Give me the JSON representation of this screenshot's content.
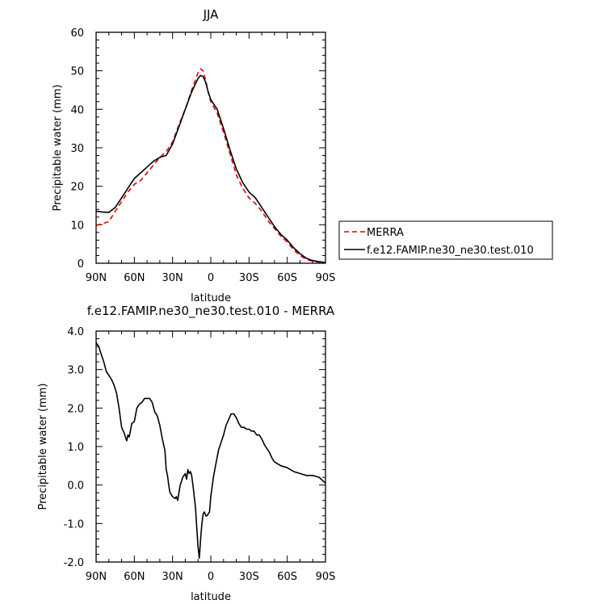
{
  "chart_data": [
    {
      "type": "line",
      "title": "JJA",
      "xlabel": "latitude",
      "ylabel": "Precipitable water (mm)",
      "xlim": [
        90,
        -90
      ],
      "ylim": [
        0,
        60
      ],
      "xticks": [
        90,
        60,
        30,
        0,
        -30,
        -60,
        -90
      ],
      "xtick_labels": [
        "90N",
        "60N",
        "30N",
        "0",
        "30S",
        "60S",
        "90S"
      ],
      "yticks": [
        0,
        10,
        20,
        30,
        40,
        50,
        60
      ],
      "ytick_labels": [
        "0",
        "10",
        "20",
        "30",
        "40",
        "50",
        "60"
      ],
      "grid": false,
      "legend_position": "right",
      "series": [
        {
          "name": "MERRA",
          "color": "#e00000",
          "dash": "dashed",
          "x": [
            90,
            85,
            80,
            75,
            70,
            65,
            60,
            55,
            50,
            45,
            40,
            35,
            30,
            25,
            20,
            15,
            10,
            8,
            6,
            4,
            2,
            0,
            -5,
            -10,
            -15,
            -20,
            -25,
            -30,
            -35,
            -40,
            -45,
            -50,
            -55,
            -60,
            -65,
            -70,
            -75,
            -80,
            -85,
            -90
          ],
          "y": [
            9.8,
            10.3,
            10.8,
            13.5,
            16.0,
            18.5,
            20.5,
            21.5,
            23.5,
            25.5,
            27.5,
            29.0,
            31.5,
            36.0,
            40.0,
            45.0,
            49.5,
            50.5,
            50.0,
            47.5,
            44.5,
            42.0,
            39.0,
            34.0,
            28.5,
            23.0,
            19.5,
            17.0,
            15.5,
            13.5,
            11.0,
            9.0,
            7.0,
            5.5,
            3.5,
            2.0,
            1.0,
            0.5,
            0.3,
            0.1
          ]
        },
        {
          "name": "f.e12.FAMIP.ne30_ne30.test.010",
          "color": "#000000",
          "dash": "solid",
          "x": [
            90,
            85,
            80,
            75,
            70,
            65,
            60,
            55,
            50,
            45,
            40,
            35,
            30,
            25,
            20,
            15,
            10,
            8,
            6,
            4,
            2,
            0,
            -5,
            -10,
            -15,
            -20,
            -25,
            -30,
            -35,
            -40,
            -45,
            -50,
            -55,
            -60,
            -65,
            -70,
            -75,
            -80,
            -85,
            -90
          ],
          "y": [
            13.5,
            13.3,
            13.2,
            14.5,
            17.0,
            19.5,
            22.0,
            23.5,
            25.0,
            26.5,
            27.5,
            28.0,
            31.0,
            35.5,
            40.0,
            44.5,
            48.0,
            48.8,
            48.5,
            47.0,
            44.5,
            42.5,
            40.0,
            35.0,
            29.5,
            24.5,
            21.0,
            18.5,
            17.0,
            14.5,
            12.0,
            9.5,
            7.5,
            6.0,
            4.0,
            2.5,
            1.3,
            0.7,
            0.4,
            0.2
          ]
        }
      ]
    },
    {
      "type": "line",
      "title": "f.e12.FAMIP.ne30_ne30.test.010 - MERRA",
      "xlabel": "latitude",
      "ylabel": "Precipitable water (mm)",
      "xlim": [
        90,
        -90
      ],
      "ylim": [
        -2.0,
        4.0
      ],
      "xticks": [
        90,
        60,
        30,
        0,
        -30,
        -60,
        -90
      ],
      "xtick_labels": [
        "90N",
        "60N",
        "30N",
        "0",
        "30S",
        "60S",
        "90S"
      ],
      "yticks": [
        -2.0,
        -1.0,
        0.0,
        1.0,
        2.0,
        3.0,
        4.0
      ],
      "ytick_labels": [
        "-2.0",
        "-1.0",
        "0.0",
        "1.0",
        "2.0",
        "3.0",
        "4.0"
      ],
      "grid": false,
      "series": [
        {
          "color": "#000000",
          "dash": "solid",
          "x": [
            90,
            88,
            86,
            84,
            82,
            80,
            78,
            76,
            74,
            72,
            70,
            68,
            66,
            65,
            64,
            62,
            60,
            58,
            56,
            54,
            52,
            50,
            48,
            46,
            44,
            42,
            40,
            38,
            36,
            35,
            34,
            33,
            32,
            30,
            28,
            27,
            26,
            24,
            22,
            20,
            19,
            18,
            17,
            16,
            15,
            14,
            13,
            12,
            11,
            10,
            9,
            8,
            7,
            6,
            5,
            4,
            3,
            2,
            1,
            0,
            -2,
            -4,
            -6,
            -8,
            -10,
            -12,
            -14,
            -16,
            -18,
            -20,
            -22,
            -24,
            -26,
            -28,
            -30,
            -32,
            -34,
            -36,
            -38,
            -40,
            -42,
            -44,
            -46,
            -48,
            -50,
            -55,
            -60,
            -65,
            -70,
            -75,
            -80,
            -85,
            -90
          ],
          "y": [
            3.7,
            3.6,
            3.4,
            3.2,
            2.95,
            2.85,
            2.75,
            2.6,
            2.4,
            2.0,
            1.5,
            1.35,
            1.15,
            1.3,
            1.25,
            1.6,
            1.65,
            2.0,
            2.1,
            2.15,
            2.25,
            2.25,
            2.25,
            2.15,
            1.9,
            1.8,
            1.55,
            1.2,
            0.9,
            0.4,
            0.25,
            0.0,
            -0.2,
            -0.3,
            -0.35,
            -0.3,
            -0.4,
            0.0,
            0.2,
            0.3,
            0.15,
            0.4,
            0.3,
            0.35,
            0.25,
            0.0,
            -0.3,
            -0.6,
            -1.1,
            -1.6,
            -1.9,
            -1.4,
            -1.0,
            -0.75,
            -0.7,
            -0.8,
            -0.8,
            -0.75,
            -0.7,
            -0.3,
            0.2,
            0.55,
            0.9,
            1.1,
            1.3,
            1.55,
            1.7,
            1.85,
            1.85,
            1.75,
            1.6,
            1.5,
            1.5,
            1.45,
            1.45,
            1.4,
            1.4,
            1.3,
            1.3,
            1.2,
            1.05,
            0.95,
            0.85,
            0.7,
            0.6,
            0.5,
            0.45,
            0.35,
            0.3,
            0.25,
            0.25,
            0.2,
            0.05
          ]
        }
      ]
    }
  ]
}
